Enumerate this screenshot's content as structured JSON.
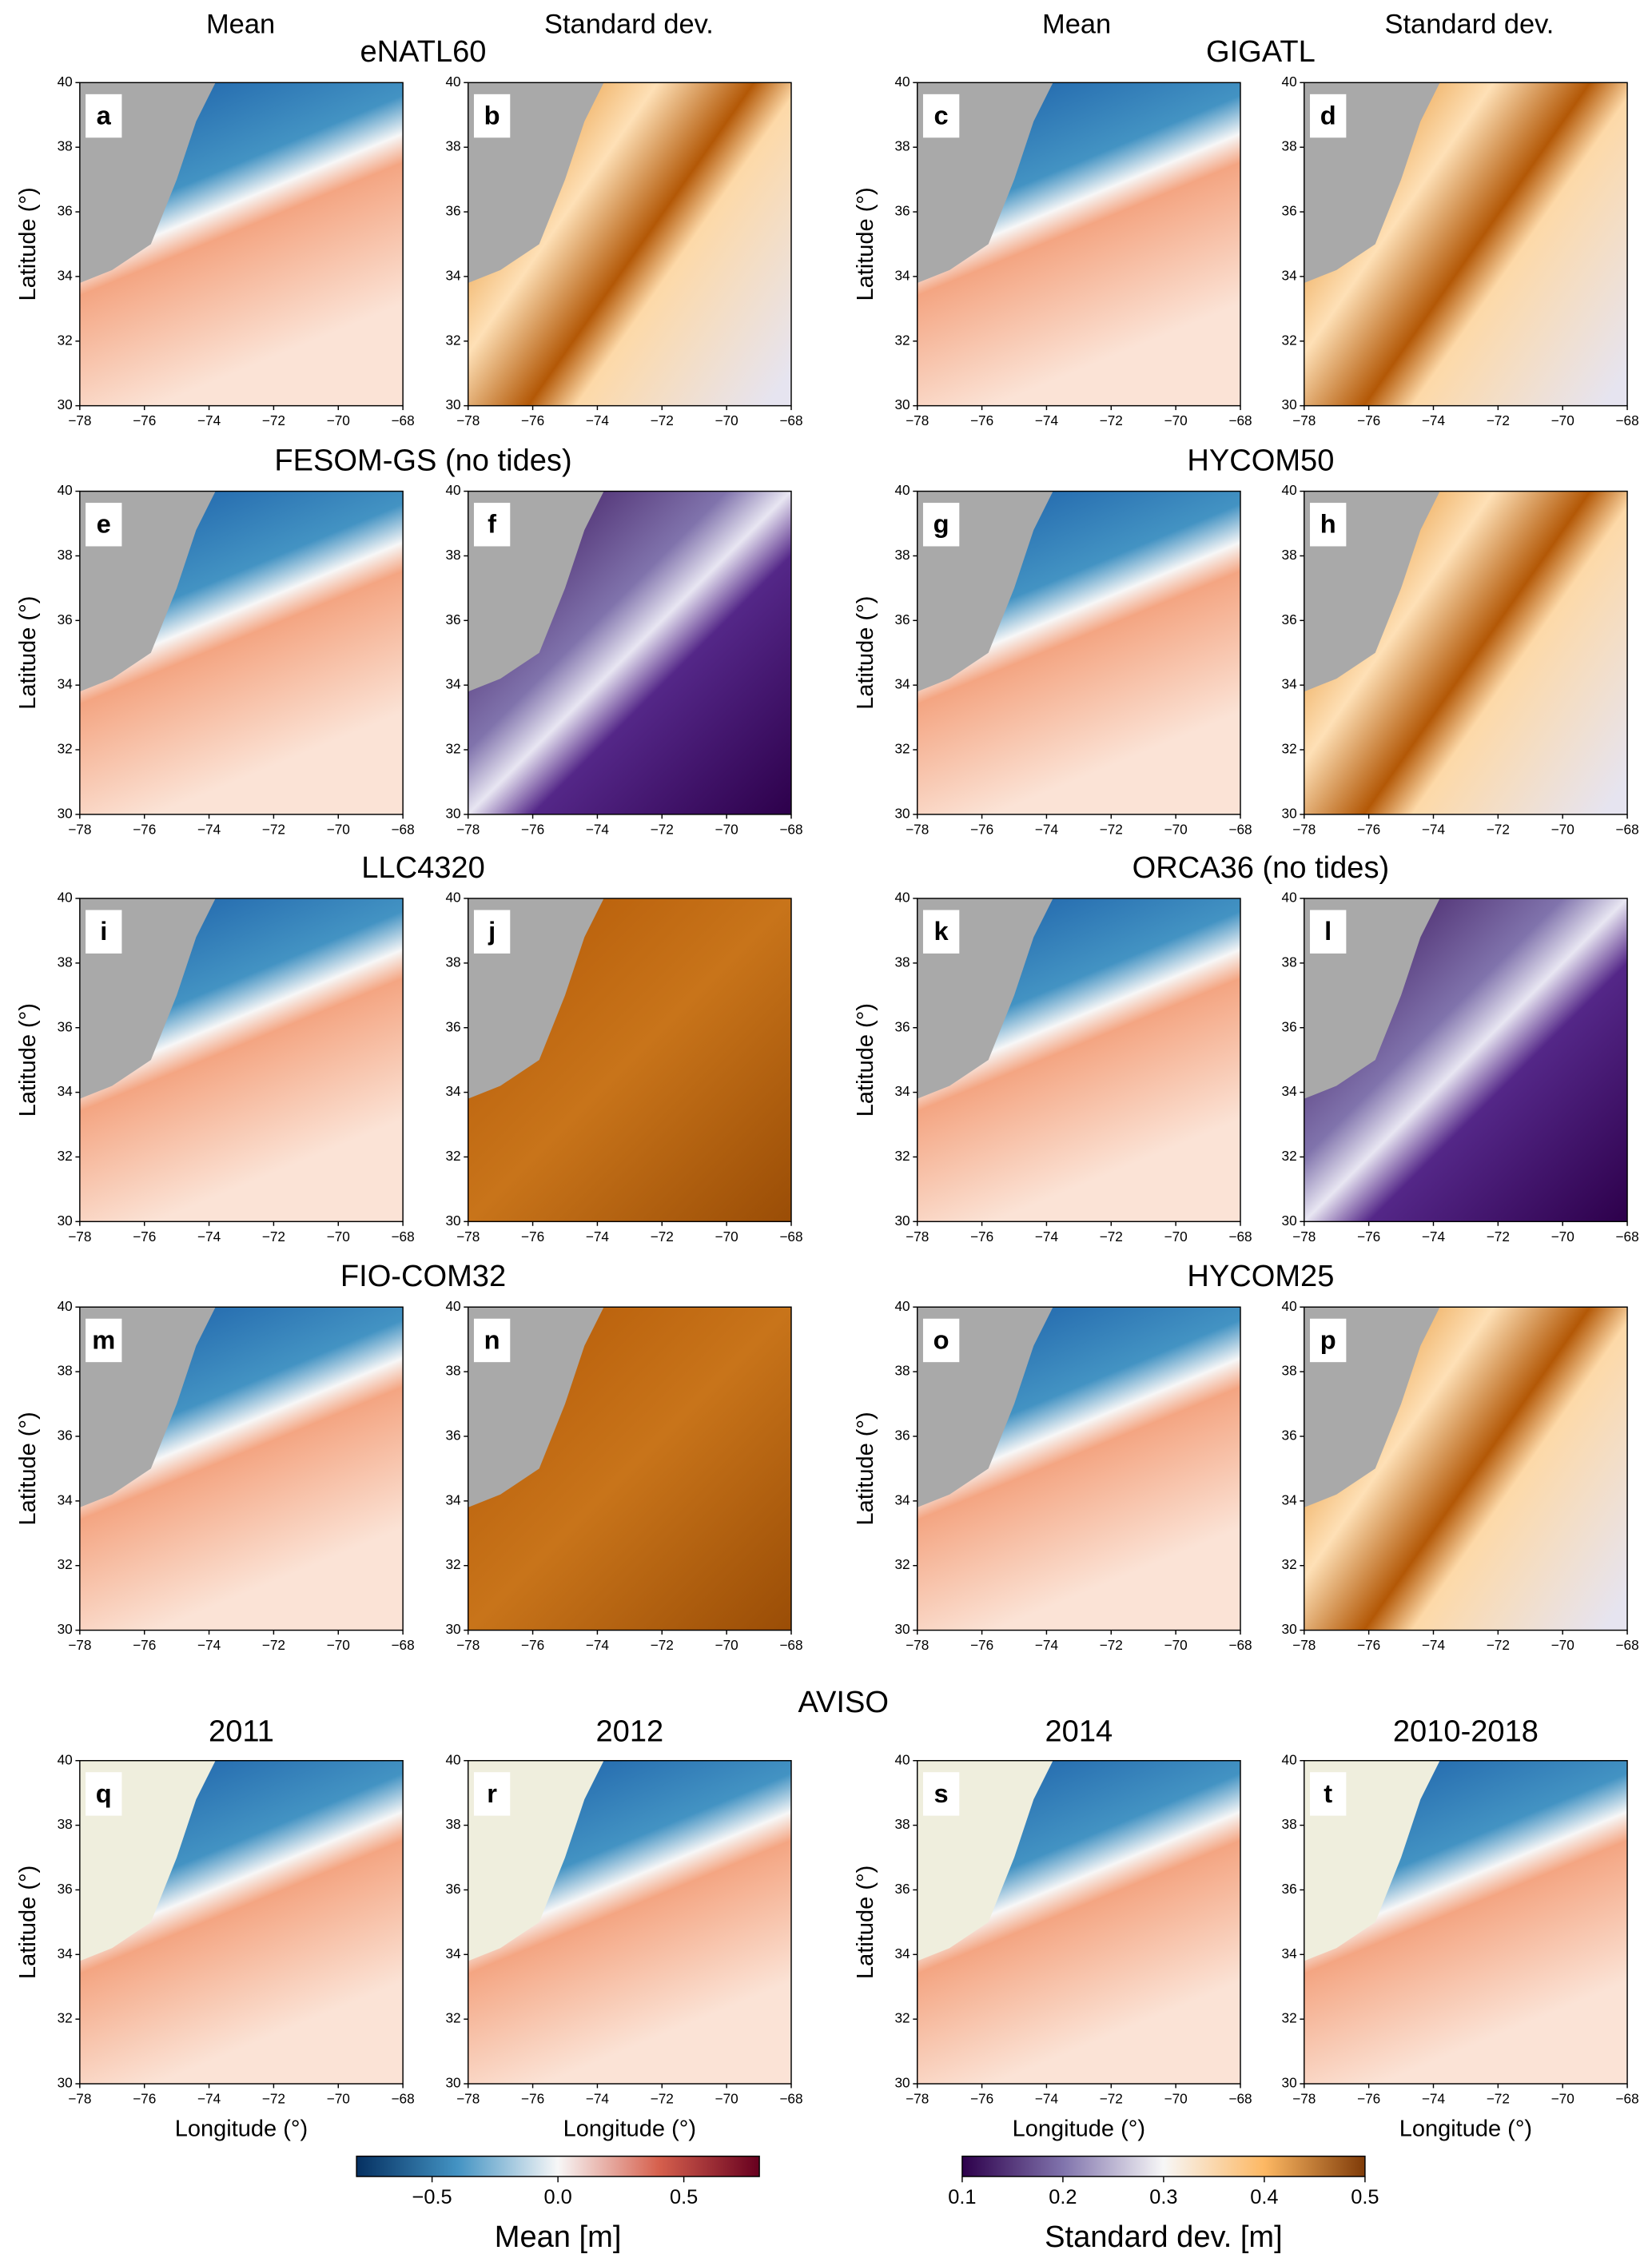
{
  "column_headers": [
    "Mean",
    "Standard dev.",
    "Mean",
    "Standard dev."
  ],
  "axes": {
    "xlim": [
      -78,
      -68
    ],
    "ylim": [
      30,
      40
    ],
    "xticks": [
      {
        "value": -78,
        "label": "−78"
      },
      {
        "value": -76,
        "label": "−76"
      },
      {
        "value": -74,
        "label": "−74"
      },
      {
        "value": -72,
        "label": "−72"
      },
      {
        "value": -70,
        "label": "−70"
      },
      {
        "value": -68,
        "label": "−68"
      }
    ],
    "yticks": [
      30,
      32,
      34,
      36,
      38,
      40
    ],
    "xlabel": "Longitude (°)",
    "ylabel": "Latitude (°)"
  },
  "groups": [
    {
      "title": "eNATL60",
      "panels": [
        "a",
        "b"
      ]
    },
    {
      "title": "GIGATL",
      "panels": [
        "c",
        "d"
      ]
    },
    {
      "title": "FESOM-GS (no tides)",
      "panels": [
        "e",
        "f"
      ]
    },
    {
      "title": "HYCOM50",
      "panels": [
        "g",
        "h"
      ]
    },
    {
      "title": "LLC4320",
      "panels": [
        "i",
        "j"
      ]
    },
    {
      "title": "ORCA36 (no tides)",
      "panels": [
        "k",
        "l"
      ]
    },
    {
      "title": "FIO-COM32",
      "panels": [
        "m",
        "n"
      ]
    },
    {
      "title": "HYCOM25",
      "panels": [
        "o",
        "p"
      ]
    }
  ],
  "aviso": {
    "title": "AVISO",
    "panels": [
      {
        "title": "2011",
        "letter": "q"
      },
      {
        "title": "2012",
        "letter": "r"
      },
      {
        "title": "2014",
        "letter": "s"
      },
      {
        "title": "2010-2018",
        "letter": "t"
      }
    ]
  },
  "colorbars": [
    {
      "label": "Mean [m]",
      "lim": [
        -0.8,
        0.8
      ],
      "ticks": [
        {
          "value": -0.5,
          "label": "−0.5"
        },
        {
          "value": 0,
          "label": "0.0"
        },
        {
          "value": 0.5,
          "label": "0.5"
        }
      ]
    },
    {
      "label": "Standard dev. [m]",
      "lim": [
        0.1,
        0.5
      ],
      "ticks": [
        0.1,
        0.2,
        0.3,
        0.4,
        0.5
      ]
    }
  ]
}
